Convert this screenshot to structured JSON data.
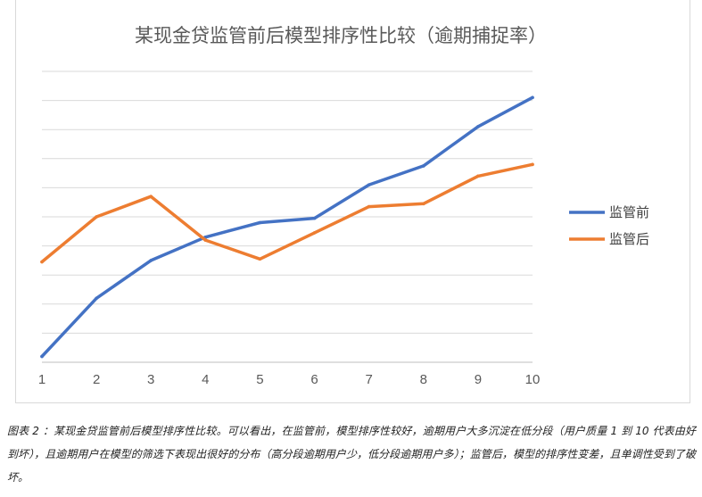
{
  "chart_data": {
    "type": "line",
    "title": "某现金贷监管前后模型排序性比较（逾期捕捉率）",
    "xlabel": "",
    "ylabel": "",
    "categories": [
      "1",
      "2",
      "3",
      "4",
      "5",
      "6",
      "7",
      "8",
      "9",
      "10"
    ],
    "ylim": [
      0,
      10
    ],
    "grid": true,
    "legend_position": "right",
    "series": [
      {
        "name": "监管前",
        "color": "#4472C4",
        "values": [
          0.2,
          2.2,
          3.5,
          4.3,
          4.8,
          4.95,
          6.1,
          6.75,
          8.1,
          9.1
        ]
      },
      {
        "name": "监管后",
        "color": "#ED7D31",
        "values": [
          3.45,
          5.0,
          5.7,
          4.2,
          3.55,
          4.45,
          5.35,
          5.45,
          6.4,
          6.8
        ]
      }
    ]
  },
  "caption": {
    "text": "图表 2 ：某现金贷监管前后模型排序性比较。可以看出，在监管前，模型排序性较好，逾期用户大多沉淀在低分段（用户质量 1 到 10 代表由好到坏），且逾期用户在模型的筛选下表现出很好的分布（高分段逾期用户少，低分段逾期用户多）；监管后，模型的排序性变差，且单调性受到了破坏。"
  }
}
